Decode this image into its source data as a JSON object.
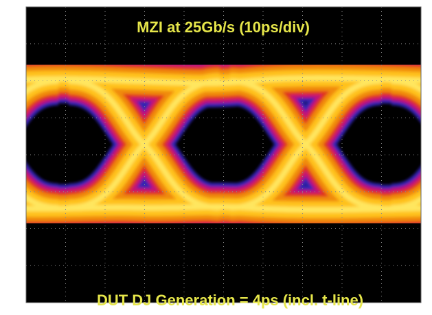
{
  "screen": {
    "title": "MZI at 25Gb/s (10ps/div)",
    "caption": "DUT DJ Generation = 4ps (incl. t-line)"
  }
}
